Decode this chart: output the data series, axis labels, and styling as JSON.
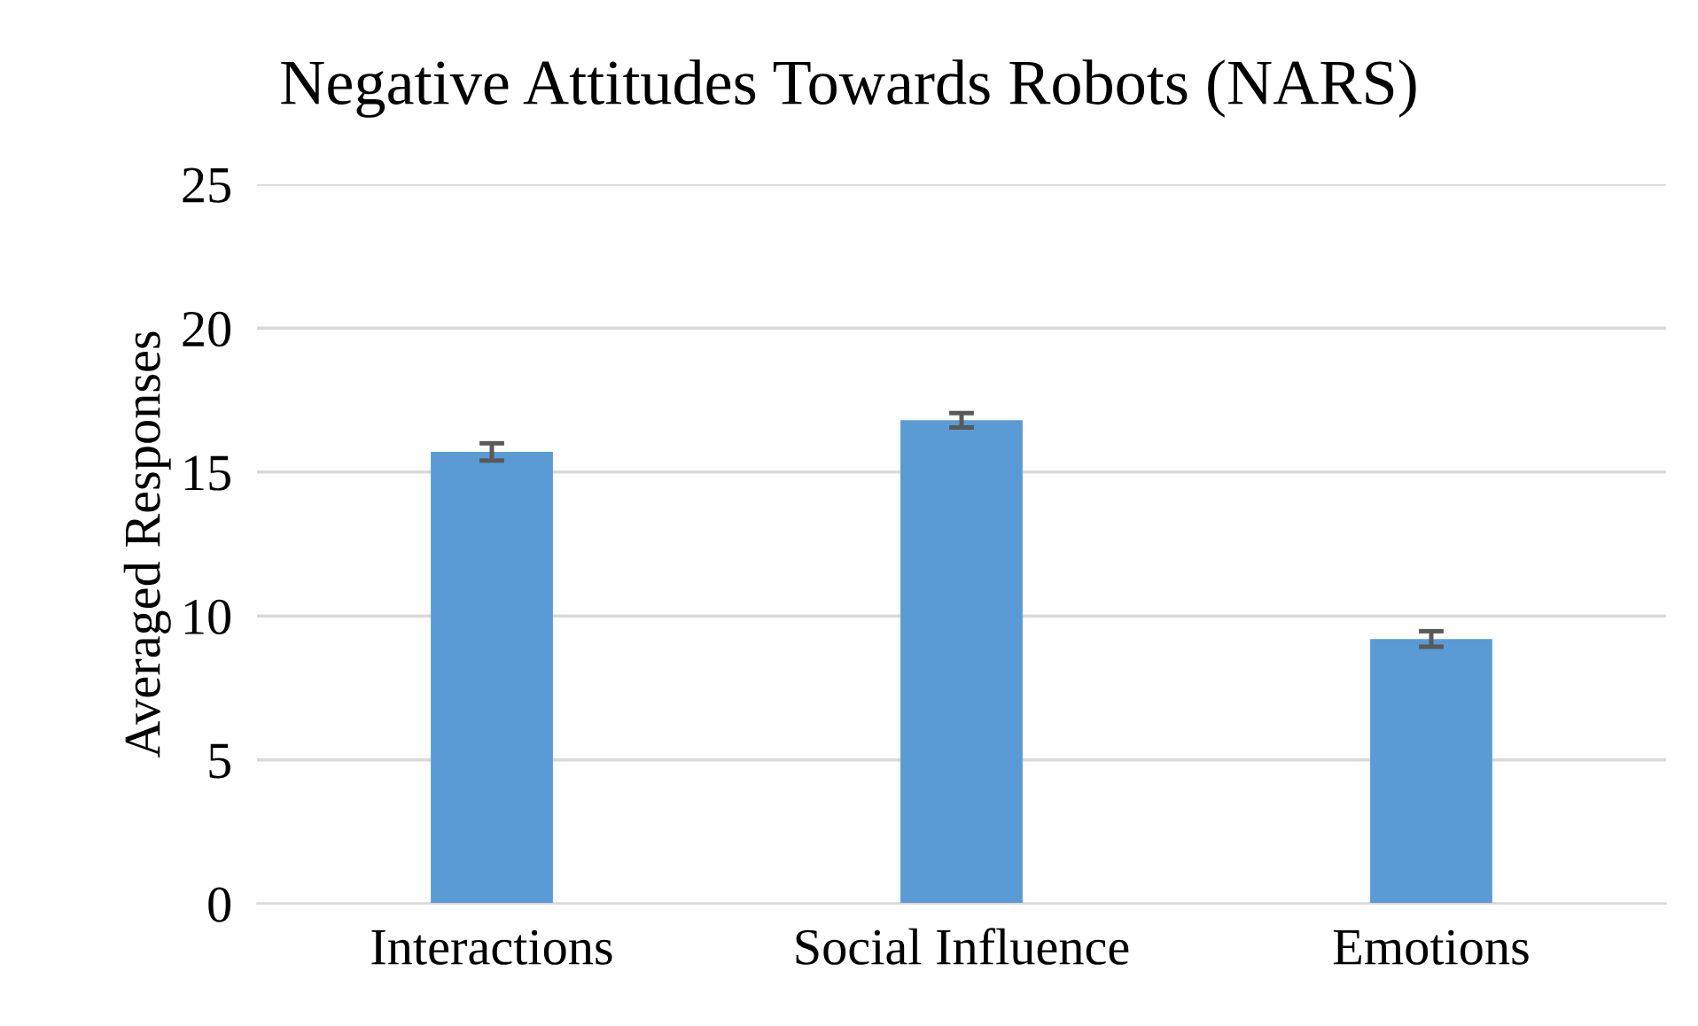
{
  "chart_data": {
    "type": "bar",
    "title": "Negative Attitudes Towards Robots (NARS)",
    "ylabel": "Averaged Responses",
    "categories": [
      "Interactions",
      "Social Influence",
      "Emotions"
    ],
    "values": [
      15.7,
      16.8,
      9.2
    ],
    "errors": [
      0.3,
      0.25,
      0.27
    ],
    "color": "#5b9bd5",
    "ylim": [
      0,
      25
    ],
    "yticks": [
      0,
      5,
      10,
      15,
      20,
      25
    ],
    "grid": "y"
  }
}
